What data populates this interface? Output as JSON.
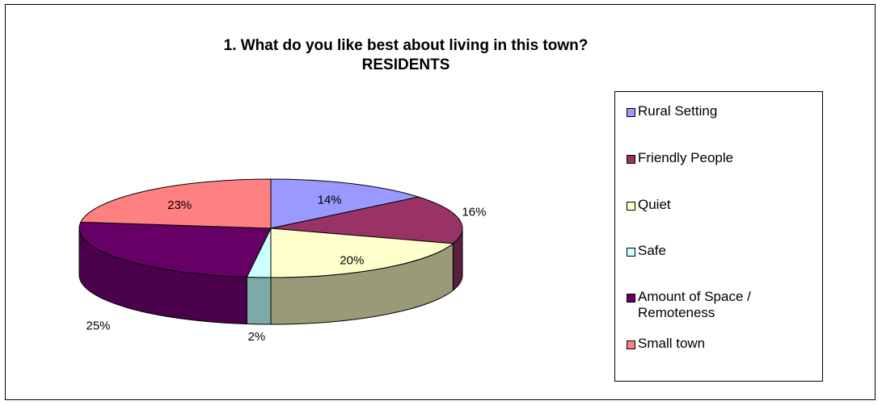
{
  "chart_data": {
    "type": "pie",
    "title_line1": "1. What do you like best about living in this town?",
    "title_line2": "RESIDENTS",
    "legend_position": "right",
    "slices": [
      {
        "label": "Rural Setting",
        "value": 14,
        "display": "14%",
        "color": "#9999ff",
        "side": "#6b6bb3"
      },
      {
        "label": "Friendly People",
        "value": 16,
        "display": "16%",
        "color": "#993366",
        "side": "#5c1f3d"
      },
      {
        "label": "Quiet",
        "value": 20,
        "display": "20%",
        "color": "#ffffcc",
        "side": "#9a9a78"
      },
      {
        "label": "Safe",
        "value": 2,
        "display": "2%",
        "color": "#ccffff",
        "side": "#7fa8a8"
      },
      {
        "label": "Amount of Space / Remoteness",
        "value": 25,
        "display": "25%",
        "color": "#660066",
        "side": "#4a004a"
      },
      {
        "label": "Small town",
        "value": 23,
        "display": "23%",
        "color": "#ff8080",
        "side": "#b35a5a"
      }
    ]
  }
}
